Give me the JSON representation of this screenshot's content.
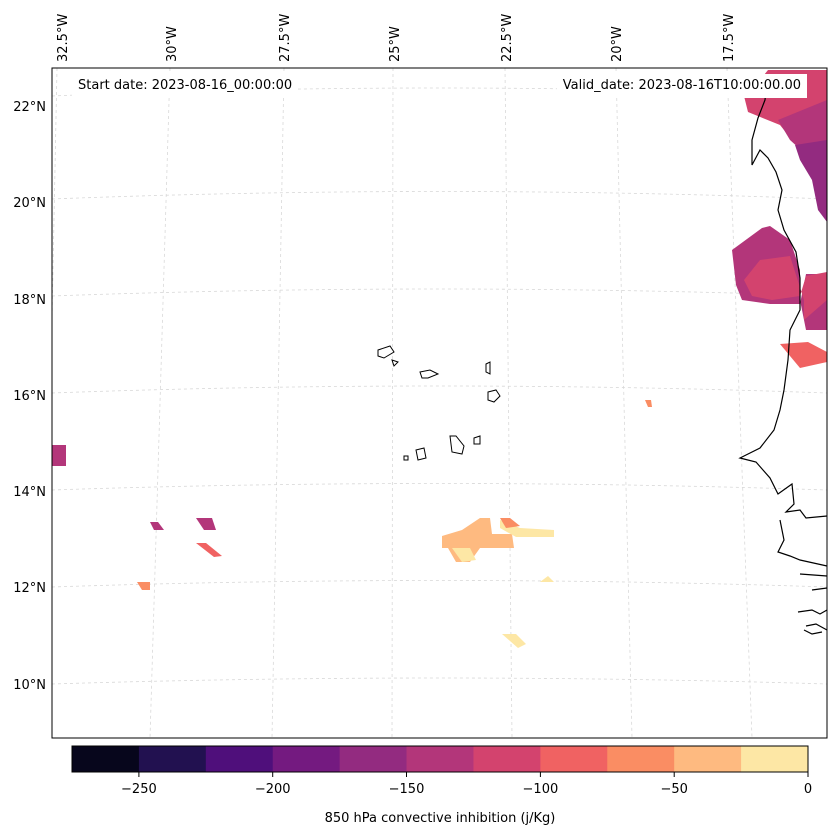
{
  "map": {
    "start_date_label": "Start date: 2023-08-16_00:00:00",
    "valid_date_label": "Valid_date: 2023-08-16T10:00:00.00",
    "lon_labels": [
      "32.5°W",
      "30°W",
      "27.5°W",
      "25°W",
      "22.5°W",
      "20°W",
      "17.5°W"
    ],
    "lat_labels": [
      "22°N",
      "20°N",
      "18°N",
      "16°N",
      "14°N",
      "12°N",
      "10°N"
    ]
  },
  "colorbar": {
    "label": "850 hPa convective inhibition (j/Kg)",
    "tick_labels": [
      "−250",
      "−200",
      "−150",
      "−100",
      "−50",
      "0"
    ],
    "bin_colors": [
      "#07061c",
      "#221150",
      "#4f0f7b",
      "#741a80",
      "#932b80",
      "#b3367a",
      "#d3436e",
      "#f06262",
      "#fa8d63",
      "#feba80",
      "#fde7a5"
    ]
  },
  "colors": {
    "coastline": "#000000",
    "gridline": "#cccccc",
    "frame": "#000000"
  }
}
